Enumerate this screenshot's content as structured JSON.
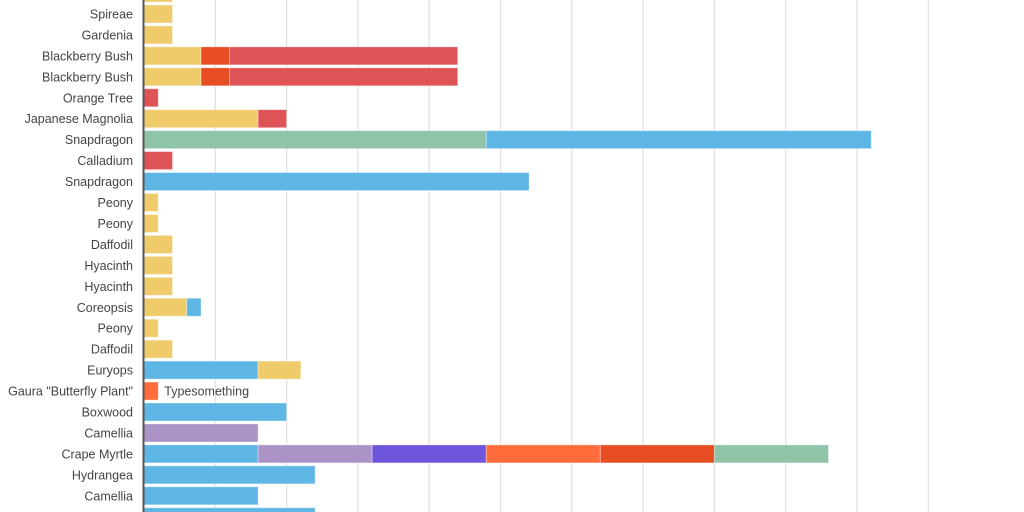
{
  "chart_data": {
    "type": "bar",
    "orientation": "horizontal",
    "stacked": true,
    "xlim": [
      0,
      60
    ],
    "grid": true,
    "colors": {
      "yellow": "#f0cb6b",
      "red": "#de5356",
      "vermilion": "#e64d22",
      "green": "#8fc4a8",
      "blue": "#5eb6e5",
      "lavender": "#ab93c7",
      "violet": "#6e55dc",
      "orange": "#ff6b3b"
    },
    "rows": [
      {
        "label": "",
        "segments": [
          {
            "value": 2,
            "color": "yellow"
          }
        ]
      },
      {
        "label": "Spireae",
        "segments": [
          {
            "value": 2,
            "color": "yellow"
          }
        ]
      },
      {
        "label": "Gardenia",
        "segments": [
          {
            "value": 2,
            "color": "yellow"
          }
        ]
      },
      {
        "label": "Blackberry Bush",
        "segments": [
          {
            "value": 4,
            "color": "yellow"
          },
          {
            "value": 2,
            "color": "vermilion"
          },
          {
            "value": 16,
            "color": "red"
          }
        ]
      },
      {
        "label": "Blackberry Bush",
        "segments": [
          {
            "value": 4,
            "color": "yellow"
          },
          {
            "value": 2,
            "color": "vermilion"
          },
          {
            "value": 16,
            "color": "red"
          }
        ]
      },
      {
        "label": "Orange Tree",
        "segments": [
          {
            "value": 1,
            "color": "red"
          }
        ]
      },
      {
        "label": "Japanese Magnolia",
        "segments": [
          {
            "value": 8,
            "color": "yellow"
          },
          {
            "value": 2,
            "color": "red"
          }
        ]
      },
      {
        "label": "Snapdragon",
        "segments": [
          {
            "value": 24,
            "color": "green"
          },
          {
            "value": 27,
            "color": "blue"
          }
        ]
      },
      {
        "label": "Calladium",
        "segments": [
          {
            "value": 2,
            "color": "red"
          }
        ]
      },
      {
        "label": "Snapdragon",
        "segments": [
          {
            "value": 27,
            "color": "blue"
          }
        ]
      },
      {
        "label": "Peony",
        "segments": [
          {
            "value": 1,
            "color": "yellow"
          }
        ]
      },
      {
        "label": "Peony",
        "segments": [
          {
            "value": 1,
            "color": "yellow"
          }
        ]
      },
      {
        "label": "Daffodil",
        "segments": [
          {
            "value": 2,
            "color": "yellow"
          }
        ]
      },
      {
        "label": "Hyacinth",
        "segments": [
          {
            "value": 2,
            "color": "yellow"
          }
        ]
      },
      {
        "label": "Hyacinth",
        "segments": [
          {
            "value": 2,
            "color": "yellow"
          }
        ]
      },
      {
        "label": "Coreopsis",
        "segments": [
          {
            "value": 3,
            "color": "yellow"
          },
          {
            "value": 1,
            "color": "blue"
          }
        ]
      },
      {
        "label": "Peony",
        "segments": [
          {
            "value": 1,
            "color": "yellow"
          }
        ]
      },
      {
        "label": "Daffodil",
        "segments": [
          {
            "value": 2,
            "color": "yellow"
          }
        ]
      },
      {
        "label": "Euryops",
        "segments": [
          {
            "value": 8,
            "color": "blue"
          },
          {
            "value": 3,
            "color": "yellow"
          }
        ]
      },
      {
        "label": "Typesomething",
        "overlap_label": "Gaura \"Butterfly Plant\"",
        "segments": [
          {
            "value": 1,
            "color": "orange"
          }
        ]
      },
      {
        "label": "Boxwood",
        "segments": [
          {
            "value": 10,
            "color": "blue"
          }
        ]
      },
      {
        "label": "Camellia",
        "segments": [
          {
            "value": 8,
            "color": "lavender"
          }
        ]
      },
      {
        "label": "Crape Myrtle",
        "segments": [
          {
            "value": 8,
            "color": "blue"
          },
          {
            "value": 8,
            "color": "lavender"
          },
          {
            "value": 8,
            "color": "violet"
          },
          {
            "value": 8,
            "color": "orange"
          },
          {
            "value": 8,
            "color": "vermilion"
          },
          {
            "value": 8,
            "color": "green"
          }
        ]
      },
      {
        "label": "Hydrangea",
        "segments": [
          {
            "value": 12,
            "color": "blue"
          }
        ]
      },
      {
        "label": "Camellia",
        "segments": [
          {
            "value": 8,
            "color": "blue"
          }
        ]
      },
      {
        "label": "",
        "segments": [
          {
            "value": 12,
            "color": "blue"
          }
        ]
      }
    ]
  }
}
